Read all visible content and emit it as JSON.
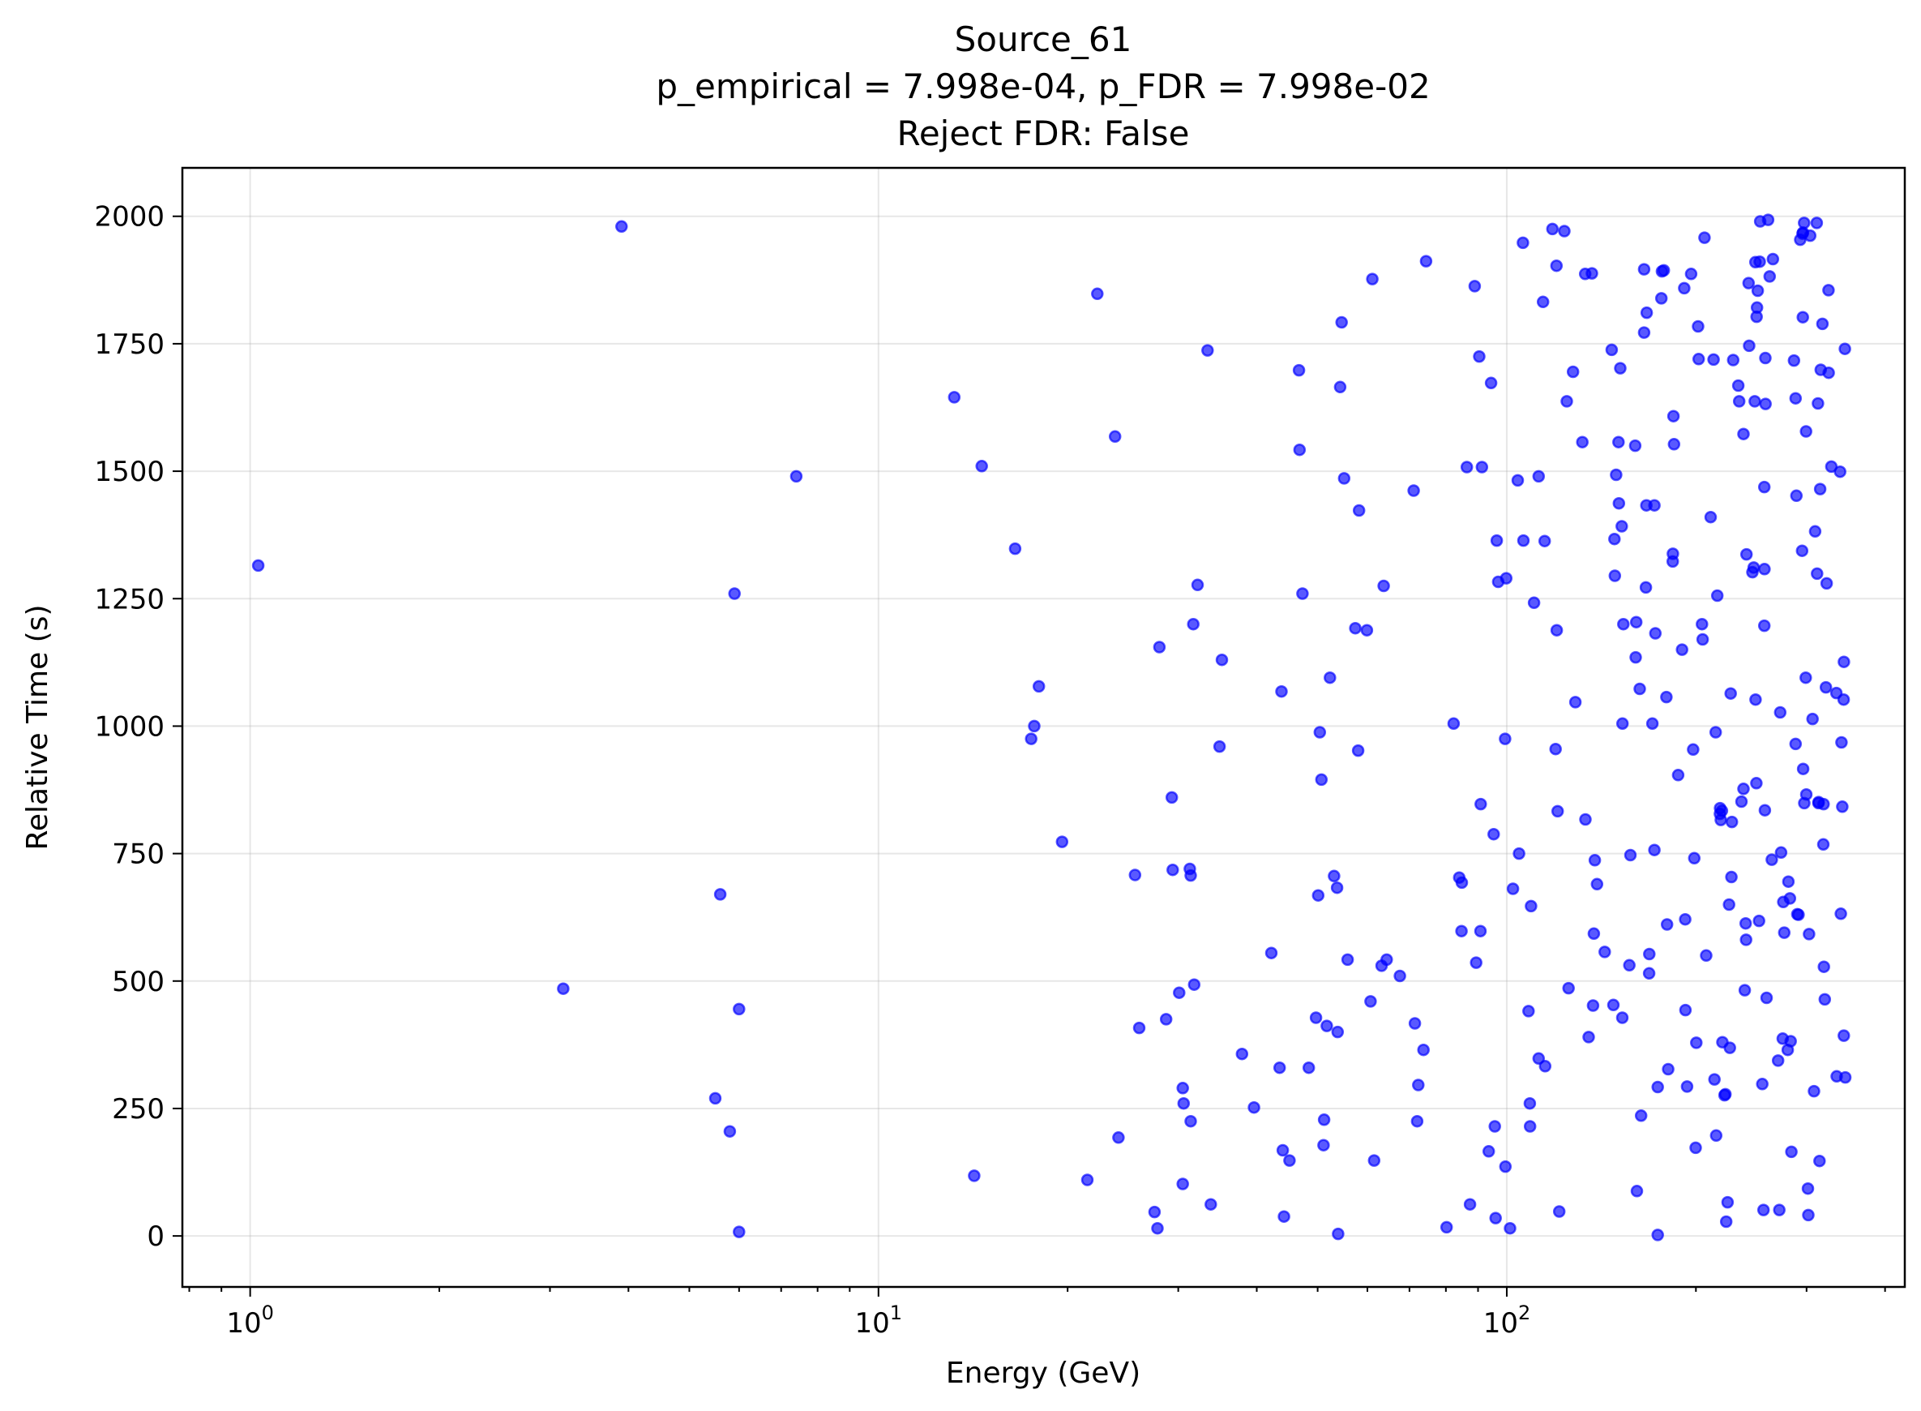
{
  "chart_data": {
    "type": "scatter",
    "title": [
      "Source_61",
      "p_empirical = 7.998e-04, p_FDR = 7.998e-02",
      "Reject FDR: False"
    ],
    "xlabel": "Energy (GeV)",
    "ylabel": "Relative Time (s)",
    "xscale": "log",
    "xlim": [
      0.78,
      430
    ],
    "ylim": [
      -100,
      2095
    ],
    "xticks": [
      {
        "value": 1,
        "base": "10",
        "exp": "0"
      },
      {
        "value": 10,
        "base": "10",
        "exp": "1"
      },
      {
        "value": 100,
        "base": "10",
        "exp": "2"
      }
    ],
    "yticks": [
      0,
      250,
      500,
      750,
      1000,
      1250,
      1500,
      1750,
      2000
    ],
    "grid": true,
    "marker_color": "#0000ff",
    "marker_alpha": 0.65,
    "points": [
      [
        1.03,
        1315
      ],
      [
        3.9,
        1980
      ],
      [
        3.15,
        485
      ],
      [
        5.9,
        1260
      ],
      [
        5.6,
        670
      ],
      [
        5.5,
        270
      ],
      [
        5.8,
        205
      ],
      [
        6.0,
        445
      ],
      [
        6.0,
        8
      ],
      [
        7.4,
        1490
      ],
      [
        13.2,
        1645
      ],
      [
        14.2,
        118
      ],
      [
        14.6,
        1510
      ],
      [
        16.5,
        1348
      ],
      [
        17.5,
        975
      ],
      [
        17.7,
        1000
      ],
      [
        18.0,
        1078
      ],
      [
        19.6,
        773
      ],
      [
        21.5,
        110
      ],
      [
        22.3,
        1848
      ],
      [
        23.8,
        1568
      ],
      [
        24.1,
        193
      ],
      [
        25.6,
        708
      ],
      [
        26.0,
        408
      ],
      [
        27.5,
        47
      ],
      [
        27.8,
        15
      ],
      [
        28.0,
        1155
      ],
      [
        28.7,
        425
      ],
      [
        29.3,
        860
      ],
      [
        29.4,
        718
      ],
      [
        30.1,
        477
      ],
      [
        30.5,
        290
      ],
      [
        30.6,
        260
      ],
      [
        30.5,
        102
      ],
      [
        31.3,
        720
      ],
      [
        31.4,
        707
      ],
      [
        31.4,
        225
      ],
      [
        31.7,
        1200
      ],
      [
        31.8,
        493
      ],
      [
        32.2,
        1277
      ],
      [
        33.4,
        1737
      ],
      [
        33.8,
        62
      ],
      [
        34.9,
        960
      ],
      [
        35.2,
        1130
      ],
      [
        37.9,
        357
      ],
      [
        39.6,
        252
      ],
      [
        42.2,
        555
      ],
      [
        43.8,
        1068
      ],
      [
        43.5,
        330
      ],
      [
        44.0,
        168
      ],
      [
        44.2,
        38
      ],
      [
        45.1,
        148
      ],
      [
        46.7,
        1698
      ],
      [
        46.8,
        1542
      ],
      [
        47.3,
        1260
      ],
      [
        48.4,
        330
      ],
      [
        49.7,
        428
      ],
      [
        50.1,
        668
      ],
      [
        50.4,
        988
      ],
      [
        50.7,
        895
      ],
      [
        51.1,
        178
      ],
      [
        51.2,
        228
      ],
      [
        51.7,
        412
      ],
      [
        52.3,
        1095
      ],
      [
        53.1,
        706
      ],
      [
        53.7,
        683
      ],
      [
        53.8,
        400
      ],
      [
        53.9,
        4
      ],
      [
        54.3,
        1665
      ],
      [
        54.6,
        1792
      ],
      [
        55.1,
        1486
      ],
      [
        55.8,
        542
      ],
      [
        57.4,
        1192
      ],
      [
        58.0,
        952
      ],
      [
        58.2,
        1423
      ],
      [
        59.9,
        1188
      ],
      [
        60.7,
        460
      ],
      [
        61.1,
        1877
      ],
      [
        61.5,
        148
      ],
      [
        63.2,
        530
      ],
      [
        63.7,
        1275
      ],
      [
        64.4,
        542
      ],
      [
        67.6,
        510
      ],
      [
        71.4,
        417
      ],
      [
        71.1,
        1462
      ],
      [
        72.0,
        225
      ],
      [
        72.3,
        296
      ],
      [
        73.7,
        365
      ],
      [
        74.4,
        1912
      ],
      [
        80.2,
        17
      ],
      [
        82.3,
        1005
      ],
      [
        84.0,
        703
      ],
      [
        84.8,
        693
      ],
      [
        84.7,
        598
      ],
      [
        86.4,
        1508
      ],
      [
        87.4,
        62
      ],
      [
        88.9,
        1863
      ],
      [
        89.4,
        536
      ],
      [
        90.4,
        1725
      ],
      [
        90.9,
        847
      ],
      [
        90.8,
        598
      ],
      [
        91.3,
        1508
      ],
      [
        93.6,
        166
      ],
      [
        94.4,
        1673
      ],
      [
        95.3,
        788
      ],
      [
        95.7,
        215
      ],
      [
        96.0,
        35
      ],
      [
        96.4,
        1364
      ],
      [
        96.9,
        1283
      ],
      [
        99.4,
        975
      ],
      [
        99.5,
        136
      ],
      [
        99.8,
        1290
      ],
      [
        101.2,
        15
      ],
      [
        102.3,
        681
      ],
      [
        104.1,
        1482
      ],
      [
        104.6,
        750
      ],
      [
        106.1,
        1948
      ],
      [
        106.3,
        1364
      ],
      [
        108.3,
        441
      ],
      [
        108.8,
        260
      ],
      [
        108.9,
        215
      ],
      [
        109.3,
        647
      ],
      [
        110.5,
        1242
      ],
      [
        112.4,
        348
      ],
      [
        112.4,
        1490
      ],
      [
        114.2,
        1832
      ],
      [
        114.9,
        1363
      ],
      [
        115.1,
        333
      ],
      [
        118.2,
        1975
      ],
      [
        119.6,
        955
      ],
      [
        120.0,
        1903
      ],
      [
        120.1,
        1188
      ],
      [
        120.5,
        833
      ],
      [
        121.2,
        48
      ],
      [
        123.5,
        1971
      ],
      [
        124.6,
        1637
      ],
      [
        125.4,
        486
      ],
      [
        127.5,
        1695
      ],
      [
        128.6,
        1047
      ],
      [
        131.9,
        1557
      ],
      [
        133.3,
        1887
      ],
      [
        133.4,
        817
      ],
      [
        135.0,
        390
      ],
      [
        136.6,
        1888
      ],
      [
        137.2,
        452
      ],
      [
        137.6,
        593
      ],
      [
        138.1,
        737
      ],
      [
        139.2,
        690
      ],
      [
        143.2,
        557
      ],
      [
        146.9,
        1738
      ],
      [
        147.8,
        453
      ],
      [
        148.4,
        1367
      ],
      [
        148.6,
        1295
      ],
      [
        149.3,
        1493
      ],
      [
        150.8,
        1437
      ],
      [
        150.6,
        1557
      ],
      [
        151.6,
        1702
      ],
      [
        152.4,
        1392
      ],
      [
        152.8,
        1005
      ],
      [
        152.7,
        428
      ],
      [
        153.3,
        1200
      ],
      [
        156.7,
        531
      ],
      [
        157.3,
        747
      ],
      [
        160.1,
        1550
      ],
      [
        160.4,
        1135
      ],
      [
        160.7,
        1204
      ],
      [
        161.1,
        88
      ],
      [
        162.8,
        1073
      ],
      [
        163.6,
        236
      ],
      [
        165.4,
        1896
      ],
      [
        165.4,
        1772
      ],
      [
        166.5,
        1272
      ],
      [
        166.8,
        1433
      ],
      [
        167.0,
        1811
      ],
      [
        168.6,
        553
      ],
      [
        168.5,
        515
      ],
      [
        170.5,
        1005
      ],
      [
        171.8,
        757
      ],
      [
        171.8,
        1433
      ],
      [
        172.4,
        1182
      ],
      [
        173.9,
        292
      ],
      [
        173.9,
        2
      ],
      [
        176.2,
        1839
      ],
      [
        176.6,
        1892
      ],
      [
        177.8,
        1894
      ],
      [
        179.5,
        1057
      ],
      [
        179.9,
        611
      ],
      [
        180.7,
        327
      ],
      [
        183.7,
        1323
      ],
      [
        183.8,
        1338
      ],
      [
        184.2,
        1608
      ],
      [
        184.6,
        1553
      ],
      [
        187.4,
        904
      ],
      [
        190.1,
        1150
      ],
      [
        191.6,
        1859
      ],
      [
        192.3,
        621
      ],
      [
        192.5,
        443
      ],
      [
        193.6,
        293
      ],
      [
        196.5,
        1887
      ],
      [
        198.0,
        954
      ],
      [
        198.8,
        741
      ],
      [
        199.8,
        173
      ],
      [
        200.3,
        379
      ],
      [
        201.6,
        1784
      ],
      [
        202.0,
        1720
      ],
      [
        204.5,
        1200
      ],
      [
        205.0,
        1170
      ],
      [
        206.4,
        1958
      ],
      [
        207.7,
        550
      ],
      [
        211.1,
        1410
      ],
      [
        213.4,
        1719
      ],
      [
        214.1,
        307
      ],
      [
        215.0,
        988
      ],
      [
        215.4,
        197
      ],
      [
        216.3,
        1256
      ],
      [
        218.4,
        828
      ],
      [
        218.5,
        839
      ],
      [
        219.1,
        816
      ],
      [
        220.0,
        834
      ],
      [
        220.4,
        380
      ],
      [
        222.1,
        276
      ],
      [
        222.8,
        278
      ],
      [
        223.5,
        28
      ],
      [
        224.6,
        66
      ],
      [
        225.8,
        650
      ],
      [
        226.5,
        369
      ],
      [
        227.2,
        1064
      ],
      [
        227.8,
        704
      ],
      [
        228.2,
        812
      ],
      [
        229.3,
        1718
      ],
      [
        233.6,
        1668
      ],
      [
        234.4,
        1637
      ],
      [
        236.3,
        852
      ],
      [
        238.1,
        1573
      ],
      [
        238.1,
        877
      ],
      [
        239.2,
        482
      ],
      [
        240.0,
        613
      ],
      [
        240.4,
        581
      ],
      [
        240.7,
        1337
      ],
      [
        242.6,
        1869
      ],
      [
        243.1,
        1746
      ],
      [
        246.0,
        1302
      ],
      [
        247.2,
        1311
      ],
      [
        248.1,
        1637
      ],
      [
        248.7,
        1910
      ],
      [
        248.9,
        1052
      ],
      [
        249.6,
        888
      ],
      [
        249.8,
        1803
      ],
      [
        250.2,
        1821
      ],
      [
        250.9,
        1854
      ],
      [
        252.1,
        618
      ],
      [
        252.7,
        1911
      ],
      [
        253.1,
        1990
      ],
      [
        255.1,
        298
      ],
      [
        256.2,
        51
      ],
      [
        257.0,
        1469
      ],
      [
        257.0,
        1197
      ],
      [
        257.1,
        1308
      ],
      [
        257.5,
        835
      ],
      [
        258.0,
        1722
      ],
      [
        258.1,
        1632
      ],
      [
        259.1,
        467
      ],
      [
        260.6,
        1993
      ],
      [
        262.1,
        1882
      ],
      [
        264.1,
        738
      ],
      [
        265.2,
        1916
      ],
      [
        270.3,
        344
      ],
      [
        271.5,
        51
      ],
      [
        272.4,
        1027
      ],
      [
        273.3,
        752
      ],
      [
        274.9,
        387
      ],
      [
        275.5,
        655
      ],
      [
        276.5,
        595
      ],
      [
        280.0,
        365
      ],
      [
        280.7,
        695
      ],
      [
        282.3,
        662
      ],
      [
        283.0,
        382
      ],
      [
        283.8,
        165
      ],
      [
        286.5,
        1717
      ],
      [
        288.2,
        1643
      ],
      [
        288.2,
        965
      ],
      [
        289.1,
        1452
      ],
      [
        290.0,
        631
      ],
      [
        291.3,
        630
      ],
      [
        293.1,
        1954
      ],
      [
        295.1,
        1344
      ],
      [
        295.7,
        1966
      ],
      [
        295.9,
        1802
      ],
      [
        296.1,
        1968
      ],
      [
        296.3,
        916
      ],
      [
        297.3,
        1987
      ],
      [
        297.5,
        849
      ],
      [
        299.1,
        1095
      ],
      [
        299.7,
        866
      ],
      [
        299.5,
        1578
      ],
      [
        301.5,
        93
      ],
      [
        302.0,
        41
      ],
      [
        302.8,
        592
      ],
      [
        304.0,
        1962
      ],
      [
        306.7,
        1014
      ],
      [
        308.3,
        284
      ],
      [
        309.6,
        1382
      ],
      [
        311.4,
        1987
      ],
      [
        311.8,
        1299
      ],
      [
        312.8,
        1633
      ],
      [
        313.4,
        849
      ],
      [
        313.6,
        851
      ],
      [
        314.6,
        147
      ],
      [
        315.3,
        1465
      ],
      [
        316.0,
        1699
      ],
      [
        318.0,
        1789
      ],
      [
        319.0,
        768
      ],
      [
        319.3,
        847
      ],
      [
        319.7,
        528
      ],
      [
        320.7,
        464
      ],
      [
        322.1,
        1076
      ],
      [
        322.9,
        1280
      ],
      [
        325.1,
        1855
      ],
      [
        325.3,
        1693
      ],
      [
        328.5,
        1509
      ],
      [
        334.6,
        1065
      ],
      [
        335.0,
        313
      ],
      [
        339.3,
        1499
      ],
      [
        340.2,
        632
      ],
      [
        341.0,
        968
      ],
      [
        342.0,
        842
      ],
      [
        343.7,
        1052
      ],
      [
        344.0,
        1126
      ],
      [
        343.9,
        393
      ],
      [
        345.2,
        1740
      ],
      [
        345.8,
        311
      ]
    ]
  }
}
